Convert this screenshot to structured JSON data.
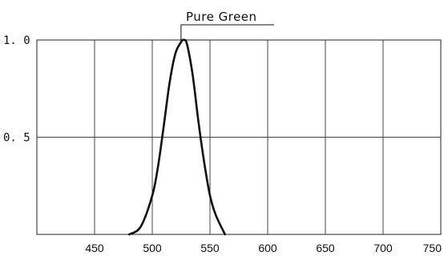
{
  "chart_data": {
    "type": "line",
    "title": "",
    "xlabel": "",
    "ylabel": "",
    "xlim": [
      400,
      750
    ],
    "ylim": [
      0,
      1.0
    ],
    "x_ticks": [
      450,
      500,
      550,
      600,
      650,
      700,
      750
    ],
    "x_tick_labels": [
      "450",
      "500",
      "550",
      "600",
      "650",
      "700",
      "750"
    ],
    "y_ticks": [
      0.5,
      1.0
    ],
    "y_tick_labels": [
      "0. 5",
      "1. 0"
    ],
    "grid": true,
    "annotations": [
      {
        "text": "Pure Green",
        "x": 527,
        "y": 1.0
      }
    ],
    "series": [
      {
        "name": "Pure Green",
        "color": "#111111",
        "x": [
          480,
          490,
          500,
          505,
          510,
          515,
          520,
          525,
          527,
          530,
          535,
          540,
          545,
          550,
          555,
          563
        ],
        "y": [
          0.0,
          0.04,
          0.2,
          0.35,
          0.56,
          0.78,
          0.93,
          0.99,
          1.0,
          0.98,
          0.82,
          0.58,
          0.37,
          0.2,
          0.1,
          0.0
        ]
      }
    ]
  }
}
